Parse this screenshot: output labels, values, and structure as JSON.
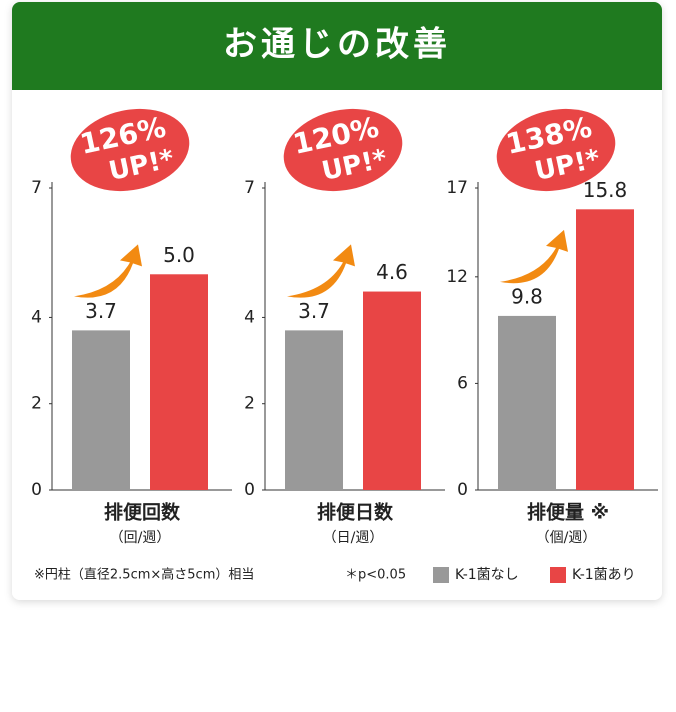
{
  "header": {
    "title": "お通じの改善"
  },
  "chart_data": [
    {
      "type": "bar",
      "x_label": "排便回数",
      "unit": "（回/週）",
      "badge": {
        "percent": "126%",
        "text": "UP!*"
      },
      "values": [
        3.7,
        5.0
      ],
      "value_labels": [
        "3.7",
        "5.0"
      ],
      "ylim": [
        0,
        7
      ],
      "yticks": [
        0,
        2,
        4,
        7
      ]
    },
    {
      "type": "bar",
      "x_label": "排便日数",
      "unit": "（日/週）",
      "badge": {
        "percent": "120%",
        "text": "UP!*"
      },
      "values": [
        3.7,
        4.6
      ],
      "ylim": [
        0,
        7
      ],
      "yticks": [
        0,
        2,
        4,
        7
      ]
    },
    {
      "type": "bar",
      "x_label": "排便量 ※",
      "unit": "（個/週）",
      "badge": {
        "percent": "138%",
        "text": "UP!*"
      },
      "values": [
        9.8,
        15.8
      ],
      "ylim": [
        0,
        17
      ],
      "yticks": [
        0,
        6,
        12,
        17
      ]
    }
  ],
  "legend": [
    {
      "name": "K-1菌なし",
      "color": "#999999"
    },
    {
      "name": "K-1菌あり",
      "color": "#e84545"
    }
  ],
  "footnotes": {
    "equivalent": "※円柱（直径2.5cm×高さ5cm）相当",
    "significance": "＊p<0.05"
  }
}
